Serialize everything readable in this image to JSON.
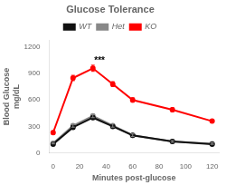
{
  "chart_data": {
    "type": "line",
    "title": "Glucose Tolerance",
    "xlabel": "Minutes post-glucose",
    "ylabel": "Blood Glucose\nmg/dL",
    "x": [
      0,
      15,
      30,
      45,
      60,
      90,
      120
    ],
    "series": [
      {
        "name": "WT",
        "color": "#111111",
        "values": [
          100,
          290,
          400,
          300,
          200,
          130,
          100
        ],
        "errors": [
          8,
          18,
          20,
          18,
          15,
          10,
          8
        ]
      },
      {
        "name": "Het",
        "color": "#888888",
        "values": [
          110,
          310,
          420,
          310,
          200,
          130,
          105
        ],
        "errors": [
          8,
          18,
          20,
          18,
          15,
          10,
          8
        ]
      },
      {
        "name": "KO",
        "color": "#ff0000",
        "values": [
          230,
          850,
          960,
          780,
          600,
          490,
          360
        ],
        "errors": [
          20,
          30,
          35,
          28,
          25,
          22,
          18
        ]
      }
    ],
    "xlim": [
      -3,
      125
    ],
    "xticks": [
      0,
      20,
      40,
      60,
      80,
      100,
      120
    ],
    "ylim": [
      0,
      1280
    ],
    "yticks": [
      0,
      300,
      600,
      900,
      1200
    ],
    "marker": "o",
    "grid": false,
    "legend": "top",
    "annotations": [
      {
        "text": "***",
        "x": 35,
        "y": 990
      }
    ]
  }
}
